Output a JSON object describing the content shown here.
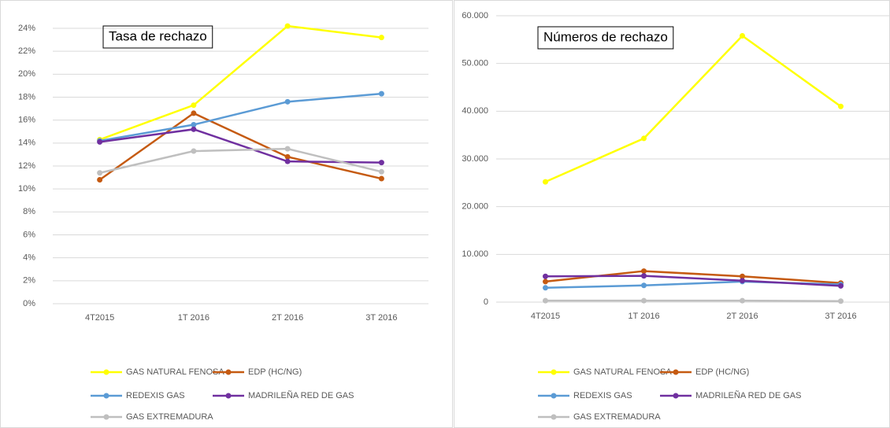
{
  "chart_data": [
    {
      "type": "line",
      "annotation": "Tasa de rechazo",
      "categories": [
        "4T2015",
        "1T 2016",
        "2T 2016",
        "3T 2016"
      ],
      "ylim": [
        0,
        24
      ],
      "yticks": [
        {
          "value": 0,
          "label": "0%"
        },
        {
          "value": 2,
          "label": "2%"
        },
        {
          "value": 4,
          "label": "4%"
        },
        {
          "value": 6,
          "label": "6%"
        },
        {
          "value": 8,
          "label": "8%"
        },
        {
          "value": 10,
          "label": "10%"
        },
        {
          "value": 12,
          "label": "12%"
        },
        {
          "value": 14,
          "label": "14%"
        },
        {
          "value": 16,
          "label": "16%"
        },
        {
          "value": 18,
          "label": "18%"
        },
        {
          "value": 20,
          "label": "20%"
        },
        {
          "value": 22,
          "label": "22%"
        },
        {
          "value": 24,
          "label": "24%"
        }
      ],
      "grid": true,
      "series": [
        {
          "name": "GAS NATURAL FENOSA",
          "color": "#ffff00",
          "values": [
            14.3,
            17.3,
            24.2,
            23.2
          ]
        },
        {
          "name": "EDP (HC/NG)",
          "color": "#c55a11",
          "values": [
            10.8,
            16.6,
            12.8,
            10.9
          ]
        },
        {
          "name": "REDEXIS GAS",
          "color": "#5b9bd5",
          "values": [
            14.2,
            15.6,
            17.6,
            18.3
          ]
        },
        {
          "name": "MADRILEÑA RED DE GAS",
          "color": "#7030a0",
          "values": [
            14.1,
            15.2,
            12.4,
            12.3
          ]
        },
        {
          "name": "GAS EXTREMADURA",
          "color": "#bfbfbf",
          "values": [
            11.4,
            13.3,
            13.5,
            11.5
          ]
        }
      ]
    },
    {
      "type": "line",
      "annotation": "Números de rechazo",
      "categories": [
        "4T2015",
        "1T 2016",
        "2T 2016",
        "3T 2016"
      ],
      "ylim": [
        0,
        60000
      ],
      "yticks": [
        0,
        {
          "value": 10000,
          "label": "10.000"
        },
        {
          "value": 20000,
          "label": "20.000"
        },
        {
          "value": 30000,
          "label": "30.000"
        },
        {
          "value": 40000,
          "label": "40.000"
        },
        {
          "value": 50000,
          "label": "50.000"
        },
        {
          "value": 60000,
          "label": "60.000"
        }
      ],
      "grid": true,
      "series": [
        {
          "name": "GAS NATURAL FENOSA",
          "color": "#ffff00",
          "values": [
            25200,
            34300,
            55800,
            41000
          ]
        },
        {
          "name": "EDP (HC/NG)",
          "color": "#c55a11",
          "values": [
            4300,
            6500,
            5400,
            4000
          ]
        },
        {
          "name": "REDEXIS GAS",
          "color": "#5b9bd5",
          "values": [
            3000,
            3500,
            4300,
            3700
          ]
        },
        {
          "name": "MADRILEÑA RED DE GAS",
          "color": "#7030a0",
          "values": [
            5400,
            5500,
            4500,
            3400
          ]
        },
        {
          "name": "GAS EXTREMADURA",
          "color": "#bfbfbf",
          "values": [
            300,
            300,
            300,
            200
          ]
        }
      ]
    }
  ]
}
